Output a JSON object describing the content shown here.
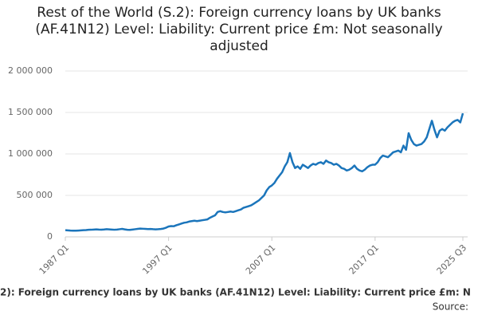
{
  "chart_data": {
    "type": "line",
    "title": "Rest of the World (S.2): Foreign currency loans by UK banks (AF.41N12) Level: Liability: Current price £m: Not seasonally adjusted",
    "footer": "2): Foreign currency loans by UK banks (AF.41N12) Level: Liability: Current price £m: N",
    "source": "Source:",
    "categories": [
      "1987 Q1",
      null,
      null,
      null,
      null,
      null,
      null,
      null,
      null,
      null,
      null,
      null,
      null,
      null,
      null,
      null,
      null,
      null,
      null,
      null,
      null,
      null,
      null,
      null,
      null,
      null,
      null,
      null,
      null,
      null,
      null,
      null,
      null,
      null,
      null,
      null,
      null,
      null,
      null,
      null,
      "1997 Q1",
      null,
      null,
      null,
      null,
      null,
      null,
      null,
      null,
      null,
      null,
      null,
      null,
      null,
      null,
      null,
      null,
      null,
      null,
      null,
      null,
      null,
      null,
      null,
      null,
      null,
      null,
      null,
      null,
      null,
      null,
      null,
      null,
      null,
      null,
      null,
      null,
      null,
      null,
      null,
      "2007 Q1",
      null,
      null,
      null,
      null,
      null,
      null,
      null,
      null,
      null,
      null,
      null,
      null,
      null,
      null,
      null,
      null,
      null,
      null,
      null,
      null,
      null,
      null,
      null,
      null,
      null,
      null,
      null,
      null,
      null,
      null,
      null,
      null,
      null,
      null,
      null,
      null,
      null,
      null,
      null,
      "2017 Q1",
      null,
      null,
      null,
      null,
      null,
      null,
      null,
      null,
      null,
      null,
      null,
      null,
      null,
      null,
      null,
      null,
      null,
      null,
      null,
      null,
      null,
      null,
      null,
      null,
      null,
      null,
      null,
      null,
      null,
      null,
      null,
      null,
      null,
      "2025 Q3"
    ],
    "series": [
      {
        "name": "Foreign currency loans",
        "color": "#1b75bb",
        "values": [
          80000,
          78000,
          76000,
          75000,
          74000,
          76000,
          78000,
          80000,
          82000,
          85000,
          86000,
          88000,
          90000,
          88000,
          87000,
          89000,
          92000,
          90000,
          88000,
          86000,
          88000,
          92000,
          96000,
          90000,
          85000,
          84000,
          88000,
          92000,
          96000,
          100000,
          98000,
          96000,
          94000,
          95000,
          92000,
          90000,
          92000,
          95000,
          100000,
          110000,
          125000,
          130000,
          128000,
          140000,
          150000,
          160000,
          170000,
          175000,
          185000,
          190000,
          195000,
          190000,
          195000,
          200000,
          205000,
          210000,
          230000,
          245000,
          260000,
          300000,
          310000,
          300000,
          295000,
          300000,
          305000,
          300000,
          310000,
          320000,
          330000,
          350000,
          360000,
          370000,
          380000,
          400000,
          420000,
          440000,
          470000,
          500000,
          560000,
          600000,
          620000,
          650000,
          700000,
          740000,
          780000,
          850000,
          900000,
          1010000,
          900000,
          830000,
          850000,
          820000,
          870000,
          850000,
          830000,
          860000,
          880000,
          870000,
          890000,
          900000,
          880000,
          920000,
          900000,
          890000,
          870000,
          880000,
          860000,
          830000,
          820000,
          800000,
          810000,
          830000,
          860000,
          820000,
          800000,
          790000,
          810000,
          840000,
          860000,
          870000,
          870000,
          900000,
          950000,
          980000,
          970000,
          960000,
          990000,
          1020000,
          1030000,
          1040000,
          1020000,
          1100000,
          1050000,
          1250000,
          1170000,
          1120000,
          1100000,
          1110000,
          1120000,
          1150000,
          1200000,
          1300000,
          1400000,
          1290000,
          1200000,
          1280000,
          1300000,
          1280000,
          1320000,
          1350000,
          1380000,
          1400000,
          1410000,
          1380000,
          1490000
        ]
      }
    ],
    "ylim": [
      0,
      2000000
    ],
    "yticks": [
      0,
      {
        "value": 500000,
        "label": "500 000"
      },
      {
        "value": 1000000,
        "label": "1 000 000"
      },
      {
        "value": 1500000,
        "label": "1 500 000"
      },
      {
        "value": 2000000,
        "label": "2 000 000"
      }
    ],
    "grid": true
  }
}
